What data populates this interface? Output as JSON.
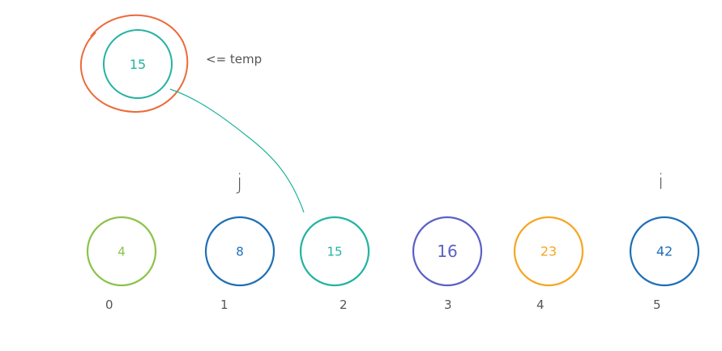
{
  "temp": {
    "value": "15",
    "label": "<= temp",
    "outer_color": "#ec6a3a",
    "inner_color": "#22b3a0"
  },
  "pointers": {
    "j": "j",
    "i": "i"
  },
  "array": [
    {
      "value": "4",
      "index": "0",
      "color": "#8bc34a"
    },
    {
      "value": "8",
      "index": "1",
      "color": "#1e6fb8"
    },
    {
      "value": "15",
      "index": "2",
      "color": "#22b3a0"
    },
    {
      "value": "16",
      "index": "3",
      "color": "#5b5fc7"
    },
    {
      "value": "23",
      "index": "4",
      "color": "#f5a623"
    },
    {
      "value": "42",
      "index": "5",
      "color": "#1e6fb8"
    }
  ],
  "connector_color": "#22b3a0"
}
